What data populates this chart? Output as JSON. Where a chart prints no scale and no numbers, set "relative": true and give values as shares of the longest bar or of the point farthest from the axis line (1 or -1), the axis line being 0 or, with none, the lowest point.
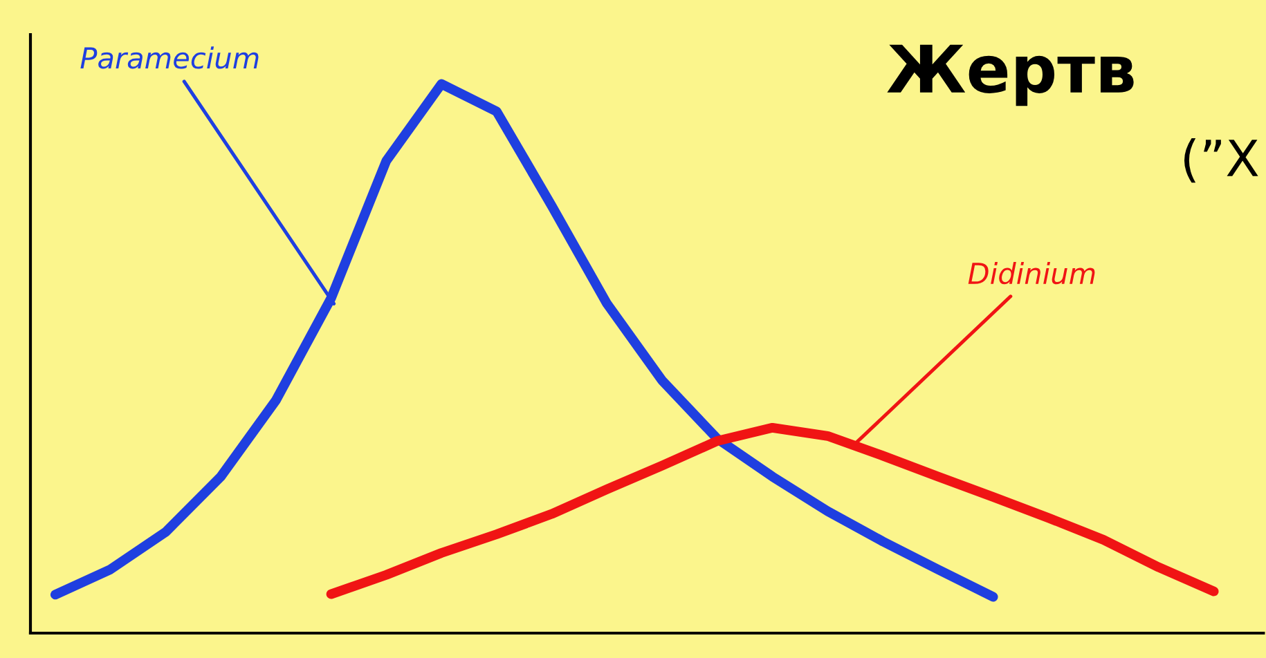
{
  "chart_data": {
    "type": "line",
    "title": "Жертв",
    "subtitle": "(”Х",
    "relative": true,
    "legend": false,
    "grid": false,
    "marker": "none",
    "line_style": "solid",
    "categories": [
      null,
      null,
      null,
      null,
      null,
      null,
      null,
      null,
      null,
      null,
      null,
      null,
      null,
      null,
      null,
      null,
      null,
      null,
      null,
      null,
      null,
      null
    ],
    "series": [
      {
        "name": "Paramecium",
        "color": "#1f3fe0",
        "values": [
          0.07,
          0.116,
          0.184,
          0.285,
          0.424,
          0.61,
          0.86,
          1.0,
          0.95,
          0.778,
          0.6,
          0.46,
          0.354,
          0.285,
          0.222,
          0.167,
          0.116,
          0.066,
          null,
          null,
          null,
          null
        ]
      },
      {
        "name": "Didinium",
        "color": "#f01414",
        "values": [
          null,
          null,
          null,
          null,
          null,
          0.071,
          0.106,
          0.146,
          0.18,
          0.217,
          0.262,
          0.305,
          0.35,
          0.374,
          0.359,
          0.323,
          0.285,
          0.248,
          0.21,
          0.17,
          0.12,
          0.076
        ]
      }
    ]
  }
}
